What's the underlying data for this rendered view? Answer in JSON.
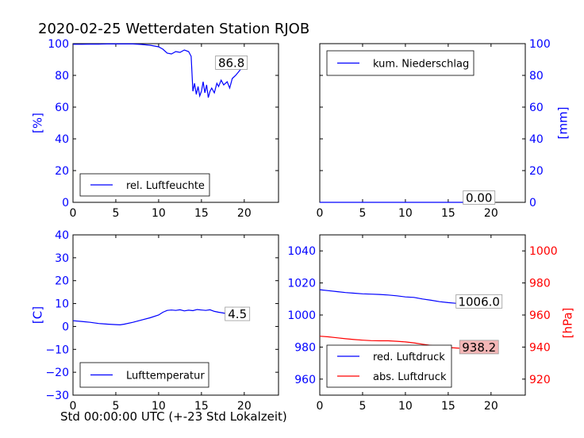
{
  "figure_title": "2020-02-25 Wetterdaten Station RJOB",
  "x_label": "Std 00:00:00 UTC (+-23 Std Lokalzeit)",
  "chart_data": [
    {
      "type": "line",
      "id": "humidity",
      "xlim": [
        0,
        24
      ],
      "ylim": [
        0,
        100
      ],
      "x_ticks": [
        0,
        5,
        10,
        15,
        20
      ],
      "y_ticks": [
        0,
        20,
        40,
        60,
        80,
        100
      ],
      "ylabel": "[%]",
      "ylabel_side": "left",
      "axis_color": "#0000ff",
      "legend_placement": "lower-left",
      "series": [
        {
          "name": "rel. Luftfeuchte",
          "color": "#0000ff",
          "x": [
            0,
            1,
            2,
            3,
            4,
            5,
            6,
            7,
            8,
            9,
            10,
            10.5,
            11,
            11.5,
            12,
            12.5,
            13,
            13.5,
            13.8,
            14.0,
            14.2,
            14.4,
            14.6,
            14.8,
            15.0,
            15.2,
            15.4,
            15.6,
            15.8,
            16.0,
            16.2,
            16.5,
            16.8,
            17.0,
            17.3,
            17.6,
            18.0,
            18.3,
            18.6,
            19.0,
            19.3,
            19.6,
            20.0
          ],
          "y": [
            99.6,
            99.6,
            99.7,
            99.7,
            99.8,
            99.8,
            99.8,
            99.8,
            99.5,
            99.0,
            98.0,
            96.5,
            94.0,
            93.5,
            95.0,
            94.5,
            96.0,
            95.0,
            92.0,
            70.0,
            75.0,
            68.0,
            73.0,
            67.0,
            70.0,
            76.0,
            69.0,
            74.0,
            66.0,
            70.0,
            72.0,
            69.0,
            75.0,
            73.0,
            77.0,
            74.0,
            76.0,
            72.0,
            78.0,
            80.0,
            82.0,
            84.0,
            86.8
          ]
        }
      ],
      "annotations": [
        {
          "text": "86.8",
          "x": 18.5,
          "y": 88,
          "bg": "#ffffff"
        }
      ]
    },
    {
      "type": "line",
      "id": "precipitation",
      "xlim": [
        0,
        24
      ],
      "ylim": [
        0,
        100
      ],
      "x_ticks": [
        0,
        5,
        10,
        15,
        20
      ],
      "y_ticks": [
        0,
        20,
        40,
        60,
        80,
        100
      ],
      "ylabel": "[mm]",
      "ylabel_side": "right",
      "axis_color": "#0000ff",
      "legend_placement": "upper-left",
      "series": [
        {
          "name": "kum. Niederschlag",
          "color": "#0000ff",
          "x": [
            0,
            5,
            10,
            15,
            20
          ],
          "y": [
            0,
            0,
            0,
            0,
            0
          ]
        }
      ],
      "annotations": [
        {
          "text": "0.00",
          "x": 18.6,
          "y": 3,
          "bg": "#ffffff"
        }
      ]
    },
    {
      "type": "line",
      "id": "temperature",
      "xlim": [
        0,
        24
      ],
      "ylim": [
        -30,
        40
      ],
      "x_ticks": [
        0,
        5,
        10,
        15,
        20
      ],
      "y_ticks": [
        -30,
        -20,
        -10,
        0,
        10,
        20,
        30,
        40
      ],
      "ylabel": "[C]",
      "ylabel_side": "left",
      "axis_color": "#0000ff",
      "legend_placement": "lower-left",
      "series": [
        {
          "name": "Lufttemperatur",
          "color": "#0000ff",
          "x": [
            0,
            1,
            2,
            3,
            4,
            5,
            5.5,
            6,
            7,
            8,
            9,
            10,
            10.5,
            11,
            11.5,
            12,
            12.5,
            13,
            13.5,
            14,
            14.5,
            15,
            15.5,
            16,
            16.5,
            17,
            17.5,
            18,
            18.5,
            19,
            19.5,
            20
          ],
          "y": [
            2.5,
            2.2,
            1.8,
            1.3,
            1.0,
            0.8,
            0.7,
            1.0,
            1.8,
            2.8,
            3.8,
            5.0,
            6.2,
            7.0,
            7.2,
            7.0,
            7.3,
            6.8,
            7.1,
            6.9,
            7.4,
            7.2,
            7.0,
            7.3,
            6.6,
            6.2,
            5.9,
            5.6,
            5.4,
            5.2,
            5.0,
            4.5
          ]
        }
      ],
      "annotations": [
        {
          "text": "4.5",
          "x": 19.2,
          "y": 5.5,
          "bg": "#ffffff"
        }
      ]
    },
    {
      "type": "line",
      "id": "pressure",
      "xlim": [
        0,
        24
      ],
      "ylim": [
        950,
        1050
      ],
      "ylim_right": [
        910,
        1010
      ],
      "x_ticks": [
        0,
        5,
        10,
        15,
        20
      ],
      "y_ticks": [
        960,
        980,
        1000,
        1020,
        1040
      ],
      "y_ticks_right": [
        920,
        940,
        960,
        980,
        1000
      ],
      "ylabel_right": "[hPa]",
      "axis_color": "#0000ff",
      "axis_color_right": "#ff0000",
      "legend_placement": "lower-left",
      "series": [
        {
          "name": "red. Luftdruck",
          "color": "#0000ff",
          "axis": "left",
          "x": [
            0,
            1,
            2,
            3,
            4,
            5,
            6,
            7,
            8,
            9,
            10,
            11,
            12,
            13,
            14,
            15,
            16,
            17,
            18,
            19,
            20
          ],
          "y": [
            1015.8,
            1015.2,
            1014.6,
            1014.0,
            1013.6,
            1013.2,
            1013.0,
            1012.8,
            1012.5,
            1012.0,
            1011.3,
            1011.0,
            1010.0,
            1009.2,
            1008.3,
            1007.7,
            1007.3,
            1007.0,
            1006.6,
            1006.4,
            1006.0
          ]
        },
        {
          "name": "abs. Luftdruck",
          "color": "#ff0000",
          "axis": "right",
          "x": [
            0,
            1,
            2,
            3,
            4,
            5,
            6,
            7,
            8,
            9,
            10,
            11,
            12,
            13,
            14,
            15,
            16,
            17,
            18,
            19,
            20
          ],
          "y": [
            946.8,
            946.4,
            945.8,
            945.2,
            944.7,
            944.3,
            944.0,
            943.9,
            943.9,
            943.6,
            943.2,
            942.6,
            941.8,
            941.0,
            940.3,
            939.7,
            939.4,
            939.0,
            938.6,
            938.4,
            938.2
          ]
        }
      ],
      "annotations": [
        {
          "text": "1006.0",
          "x": 18.6,
          "y": 1008.5,
          "axis": "left",
          "bg": "#ffffff"
        },
        {
          "text": "938.2",
          "x": 18.6,
          "y": 940,
          "axis": "right",
          "bg": "#f4b6b6"
        }
      ]
    }
  ]
}
